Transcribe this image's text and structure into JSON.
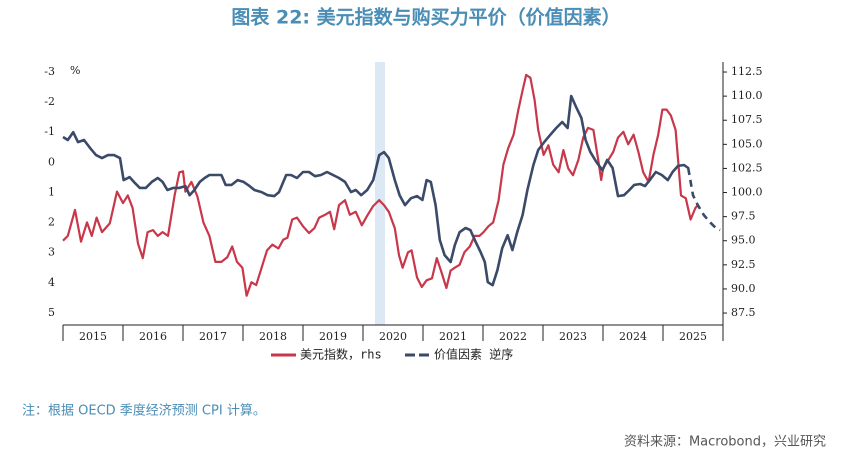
{
  "chart_data": {
    "type": "line",
    "title": "图表 22: 美元指数与购买力平价（价值因素）",
    "note": "注：根据 OECD 季度经济预测 CPI 计算。",
    "source": "资料来源：Macrobond，兴业研究",
    "y_label": "%",
    "xlim": [
      2015,
      2026
    ],
    "xticks": [
      {
        "value": 2015.5,
        "label": "2015"
      },
      {
        "value": 2016.5,
        "label": "2016"
      },
      {
        "value": 2017.5,
        "label": "2017"
      },
      {
        "value": 2018.5,
        "label": "2018"
      },
      {
        "value": 2019.5,
        "label": "2019"
      },
      {
        "value": 2020.5,
        "label": "2020"
      },
      {
        "value": 2021.5,
        "label": "2021"
      },
      {
        "value": 2022.5,
        "label": "2022"
      },
      {
        "value": 2023.5,
        "label": "2023"
      },
      {
        "value": 2024.5,
        "label": "2024"
      },
      {
        "value": 2025.5,
        "label": "2025"
      }
    ],
    "ylim": [
      5.4,
      -3.33
    ],
    "yticks": [
      -3,
      -2,
      -1,
      0,
      1,
      2,
      3,
      4,
      5
    ],
    "y2lim": [
      86.26,
      113.54
    ],
    "y2ticks": [
      {
        "value": 112.5,
        "label": "112.5"
      },
      {
        "value": 110,
        "label": "110.0"
      },
      {
        "value": 107.5,
        "label": "107.5"
      },
      {
        "value": 105,
        "label": "105.0"
      },
      {
        "value": 102.5,
        "label": "102.5"
      },
      {
        "value": 100,
        "label": "100.0"
      },
      {
        "value": 97.5,
        "label": "97.5"
      },
      {
        "value": 95,
        "label": "95.0"
      },
      {
        "value": 92.5,
        "label": "92.5"
      },
      {
        "value": 90,
        "label": "90.0"
      },
      {
        "value": 87.5,
        "label": "87.5"
      }
    ],
    "series": [
      {
        "name": "美元指数，rhs",
        "color": "#c8374a",
        "axis": "y2",
        "x": [
          2015.0,
          2015.08,
          2015.2,
          2015.3,
          2015.4,
          2015.48,
          2015.56,
          2015.65,
          2015.78,
          2015.9,
          2016.0,
          2016.08,
          2016.16,
          2016.25,
          2016.33,
          2016.41,
          2016.5,
          2016.58,
          2016.66,
          2016.75,
          2016.86,
          2016.94,
          2017.0,
          2017.04,
          2017.14,
          2017.24,
          2017.34,
          2017.44,
          2017.54,
          2017.64,
          2017.74,
          2017.82,
          2017.9,
          2017.99,
          2018.06,
          2018.14,
          2018.22,
          2018.3,
          2018.4,
          2018.49,
          2018.59,
          2018.67,
          2018.74,
          2018.82,
          2018.9,
          2019.0,
          2019.1,
          2019.19,
          2019.27,
          2019.37,
          2019.45,
          2019.52,
          2019.6,
          2019.7,
          2019.78,
          2019.88,
          2019.98,
          2020.07,
          2020.17,
          2020.27,
          2020.35,
          2020.43,
          2020.53,
          2020.6,
          2020.66,
          2020.75,
          2020.81,
          2020.9,
          2020.98,
          2021.06,
          2021.15,
          2021.23,
          2021.31,
          2021.39,
          2021.46,
          2021.53,
          2021.61,
          2021.69,
          2021.78,
          2021.86,
          2021.94,
          2022.01,
          2022.09,
          2022.17,
          2022.26,
          2022.34,
          2022.42,
          2022.51,
          2022.59,
          2022.66,
          2022.72,
          2022.79,
          2022.86,
          2022.92,
          2023.01,
          2023.09,
          2023.17,
          2023.26,
          2023.34,
          2023.42,
          2023.5,
          2023.59,
          2023.67,
          2023.75,
          2023.84,
          2023.92,
          2023.97,
          2024.0,
          2024.09,
          2024.17,
          2024.25,
          2024.34,
          2024.42,
          2024.51,
          2024.59,
          2024.67,
          2024.76,
          2024.84,
          2024.92,
          2024.99,
          2025.06,
          2025.13,
          2025.21,
          2025.3,
          2025.38,
          2025.46,
          2025.54,
          2025.58
        ],
        "values": [
          95.0,
          95.5,
          98.2,
          94.9,
          96.9,
          95.5,
          97.4,
          95.9,
          96.8,
          100.1,
          98.9,
          99.7,
          98.4,
          94.7,
          93.2,
          95.9,
          96.1,
          95.5,
          95.9,
          95.5,
          99.7,
          102.1,
          102.2,
          100.1,
          101.1,
          99.6,
          96.9,
          95.5,
          92.8,
          92.8,
          93.3,
          94.4,
          92.8,
          92.2,
          89.3,
          90.7,
          90.4,
          92.0,
          94.0,
          94.6,
          94.2,
          95.1,
          95.3,
          97.2,
          97.4,
          96.5,
          95.8,
          96.3,
          97.4,
          97.7,
          98.0,
          96.2,
          98.7,
          99.2,
          97.7,
          98.0,
          96.6,
          97.6,
          98.6,
          99.2,
          98.7,
          98.0,
          96.3,
          93.5,
          92.2,
          93.8,
          94.0,
          91.2,
          90.2,
          90.9,
          91.1,
          93.2,
          91.7,
          90.1,
          91.9,
          92.2,
          92.5,
          93.8,
          94.4,
          95.5,
          95.5,
          95.9,
          96.5,
          96.9,
          99.2,
          102.9,
          104.6,
          106.0,
          108.6,
          110.6,
          112.2,
          111.9,
          109.6,
          106.5,
          103.9,
          104.9,
          102.9,
          102.1,
          104.4,
          102.5,
          101.8,
          103.4,
          105.7,
          106.7,
          106.5,
          103.4,
          101.3,
          102.5,
          103.4,
          104.2,
          105.7,
          106.3,
          105.0,
          106.0,
          104.2,
          102.1,
          101.1,
          103.9,
          106.0,
          108.6,
          108.6,
          108.0,
          106.5,
          99.7,
          99.4,
          97.2,
          98.4,
          98.7
        ]
      },
      {
        "name": "价值因素 逆序",
        "color": "#3a4a68",
        "axis": "y",
        "dashed_after_x": 2025.42,
        "x": [
          2015.0,
          2015.08,
          2015.17,
          2015.25,
          2015.35,
          2015.45,
          2015.55,
          2015.65,
          2015.75,
          2015.85,
          2015.95,
          2016.01,
          2016.11,
          2016.2,
          2016.28,
          2016.38,
          2016.48,
          2016.58,
          2016.66,
          2016.74,
          2016.84,
          2016.94,
          2017.04,
          2017.11,
          2017.19,
          2017.28,
          2017.36,
          2017.44,
          2017.54,
          2017.64,
          2017.71,
          2017.81,
          2017.91,
          2018.01,
          2018.11,
          2018.19,
          2018.31,
          2018.41,
          2018.52,
          2018.6,
          2018.72,
          2018.8,
          2018.9,
          2019.0,
          2019.1,
          2019.2,
          2019.3,
          2019.4,
          2019.5,
          2019.6,
          2019.7,
          2019.8,
          2019.88,
          2019.97,
          2020.07,
          2020.17,
          2020.27,
          2020.35,
          2020.43,
          2020.53,
          2020.61,
          2020.7,
          2020.8,
          2020.9,
          2020.99,
          2021.06,
          2021.13,
          2021.21,
          2021.28,
          2021.36,
          2021.46,
          2021.53,
          2021.61,
          2021.71,
          2021.79,
          2021.88,
          2021.96,
          2022.03,
          2022.08,
          2022.16,
          2022.24,
          2022.32,
          2022.41,
          2022.49,
          2022.57,
          2022.66,
          2022.74,
          2022.84,
          2022.92,
          2023.02,
          2023.12,
          2023.22,
          2023.32,
          2023.41,
          2023.47,
          2023.56,
          2023.64,
          2023.71,
          2023.79,
          2023.89,
          2023.99,
          2024.07,
          2024.16,
          2024.25,
          2024.35,
          2024.44,
          2024.52,
          2024.62,
          2024.7,
          2024.78,
          2024.88,
          2024.98,
          2025.08,
          2025.16,
          2025.25,
          2025.35,
          2025.42,
          2025.5,
          2025.58,
          2025.68,
          2025.78,
          2025.88,
          2025.95
        ],
        "values": [
          -0.84,
          -0.74,
          -1.0,
          -0.67,
          -0.74,
          -0.48,
          -0.24,
          -0.14,
          -0.24,
          -0.24,
          -0.14,
          0.59,
          0.49,
          0.69,
          0.85,
          0.85,
          0.65,
          0.52,
          0.65,
          0.92,
          0.85,
          0.85,
          0.79,
          1.09,
          0.92,
          0.65,
          0.52,
          0.42,
          0.42,
          0.42,
          0.75,
          0.75,
          0.59,
          0.65,
          0.79,
          0.92,
          0.99,
          1.09,
          1.12,
          0.99,
          0.42,
          0.42,
          0.52,
          0.32,
          0.32,
          0.46,
          0.42,
          0.32,
          0.42,
          0.52,
          0.65,
          0.99,
          0.92,
          1.09,
          0.92,
          0.59,
          -0.24,
          -0.34,
          -0.14,
          0.59,
          1.09,
          1.42,
          1.19,
          1.12,
          1.25,
          0.59,
          0.65,
          1.42,
          2.58,
          3.08,
          3.31,
          2.75,
          2.32,
          2.18,
          2.25,
          2.65,
          2.98,
          3.31,
          3.98,
          4.08,
          3.58,
          2.85,
          2.42,
          2.91,
          2.32,
          1.75,
          0.92,
          0.09,
          -0.41,
          -0.67,
          -0.91,
          -1.14,
          -1.34,
          -1.14,
          -2.2,
          -1.8,
          -1.47,
          -0.74,
          -0.34,
          -0.01,
          0.26,
          -0.08,
          0.19,
          1.12,
          1.09,
          0.92,
          0.75,
          0.72,
          0.79,
          0.59,
          0.32,
          0.42,
          0.59,
          0.32,
          0.12,
          0.09,
          0.19,
          1.09,
          1.42,
          1.75,
          1.98,
          2.18,
          2.25
        ]
      }
    ]
  }
}
